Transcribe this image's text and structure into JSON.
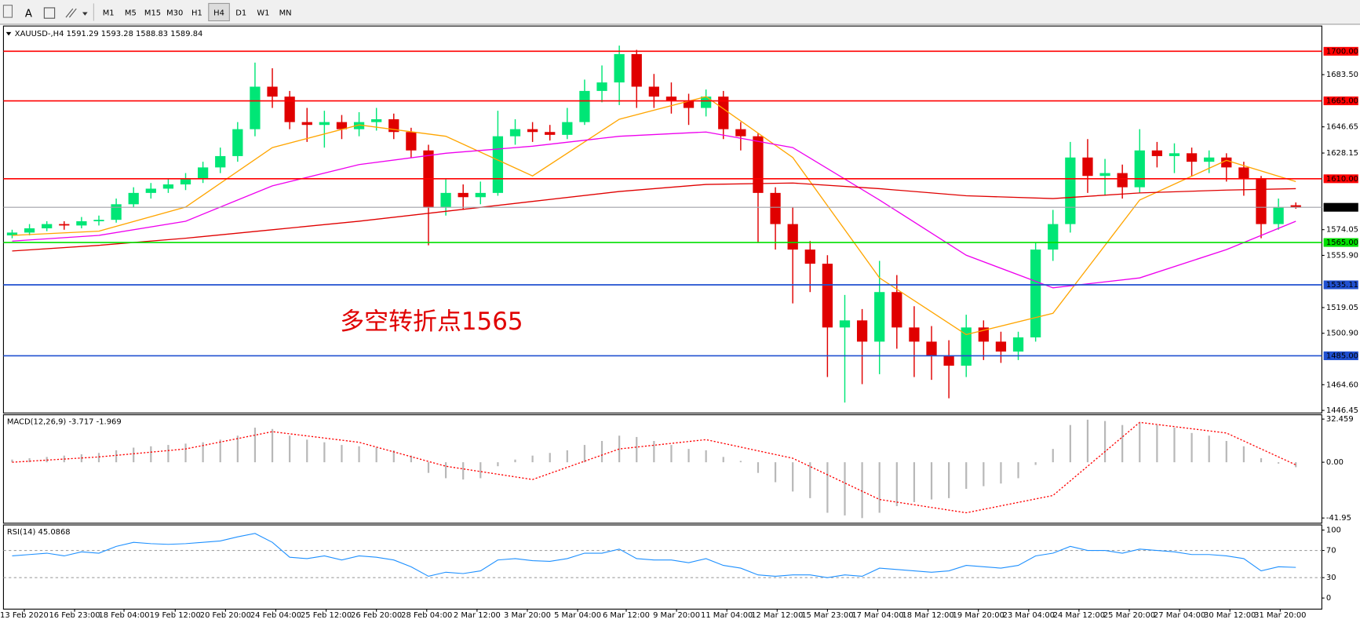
{
  "toolbar": {
    "text_tool": "A",
    "buttons": [
      "M1",
      "M5",
      "M15",
      "M30",
      "H1",
      "H4",
      "D1",
      "W1",
      "MN"
    ],
    "active": "H4"
  },
  "chart_data": [
    {
      "type": "candlestick",
      "title": "XAUUSD-,H4  1591.29 1593.28 1588.83 1589.84",
      "up_color": "#00e676",
      "down_color": "#e00000",
      "ohlc": [
        [
          1570,
          1574,
          1568,
          1572
        ],
        [
          1572,
          1578,
          1570,
          1575
        ],
        [
          1575,
          1580,
          1573,
          1578
        ],
        [
          1578,
          1580,
          1574,
          1577
        ],
        [
          1577,
          1583,
          1575,
          1580
        ],
        [
          1580,
          1584,
          1577,
          1581
        ],
        [
          1581,
          1596,
          1579,
          1592
        ],
        [
          1592,
          1604,
          1590,
          1600
        ],
        [
          1600,
          1607,
          1596,
          1603
        ],
        [
          1603,
          1610,
          1600,
          1606
        ],
        [
          1606,
          1614,
          1602,
          1610
        ],
        [
          1610,
          1622,
          1607,
          1618
        ],
        [
          1618,
          1632,
          1614,
          1626
        ],
        [
          1626,
          1650,
          1622,
          1645
        ],
        [
          1645,
          1692,
          1640,
          1675
        ],
        [
          1675,
          1688,
          1660,
          1668
        ],
        [
          1668,
          1672,
          1645,
          1650
        ],
        [
          1650,
          1660,
          1636,
          1648
        ],
        [
          1648,
          1658,
          1632,
          1650
        ],
        [
          1650,
          1655,
          1638,
          1645
        ],
        [
          1645,
          1657,
          1640,
          1650
        ],
        [
          1650,
          1660,
          1644,
          1652
        ],
        [
          1652,
          1656,
          1638,
          1643
        ],
        [
          1643,
          1646,
          1625,
          1630
        ],
        [
          1630,
          1634,
          1563,
          1590
        ],
        [
          1590,
          1610,
          1584,
          1600
        ],
        [
          1600,
          1606,
          1588,
          1597
        ],
        [
          1597,
          1608,
          1592,
          1600
        ],
        [
          1600,
          1658,
          1598,
          1640
        ],
        [
          1640,
          1652,
          1634,
          1645
        ],
        [
          1645,
          1650,
          1636,
          1643
        ],
        [
          1643,
          1648,
          1637,
          1641
        ],
        [
          1641,
          1660,
          1638,
          1650
        ],
        [
          1650,
          1680,
          1648,
          1672
        ],
        [
          1672,
          1690,
          1664,
          1678
        ],
        [
          1678,
          1704,
          1662,
          1698
        ],
        [
          1698,
          1701,
          1660,
          1675
        ],
        [
          1675,
          1684,
          1660,
          1668
        ],
        [
          1668,
          1678,
          1656,
          1665
        ],
        [
          1665,
          1670,
          1648,
          1660
        ],
        [
          1660,
          1673,
          1654,
          1668
        ],
        [
          1668,
          1672,
          1638,
          1645
        ],
        [
          1645,
          1650,
          1630,
          1640
        ],
        [
          1640,
          1642,
          1565,
          1600
        ],
        [
          1600,
          1604,
          1560,
          1578
        ],
        [
          1578,
          1590,
          1522,
          1560
        ],
        [
          1560,
          1566,
          1530,
          1550
        ],
        [
          1550,
          1556,
          1470,
          1505
        ],
        [
          1505,
          1528,
          1452,
          1510
        ],
        [
          1510,
          1518,
          1465,
          1495
        ],
        [
          1495,
          1552,
          1472,
          1530
        ],
        [
          1530,
          1542,
          1490,
          1505
        ],
        [
          1505,
          1520,
          1470,
          1495
        ],
        [
          1495,
          1506,
          1468,
          1485
        ],
        [
          1485,
          1496,
          1455,
          1478
        ],
        [
          1478,
          1514,
          1470,
          1505
        ],
        [
          1505,
          1510,
          1482,
          1495
        ],
        [
          1495,
          1502,
          1480,
          1488
        ],
        [
          1488,
          1502,
          1482,
          1498
        ],
        [
          1498,
          1565,
          1495,
          1560
        ],
        [
          1560,
          1588,
          1552,
          1578
        ],
        [
          1578,
          1636,
          1572,
          1625
        ],
        [
          1625,
          1638,
          1600,
          1612
        ],
        [
          1612,
          1624,
          1598,
          1614
        ],
        [
          1614,
          1620,
          1596,
          1604
        ],
        [
          1604,
          1645,
          1600,
          1630
        ],
        [
          1630,
          1636,
          1618,
          1626
        ],
        [
          1626,
          1635,
          1614,
          1628
        ],
        [
          1628,
          1632,
          1612,
          1622
        ],
        [
          1622,
          1630,
          1614,
          1625
        ],
        [
          1625,
          1628,
          1608,
          1618
        ],
        [
          1618,
          1622,
          1598,
          1610
        ],
        [
          1610,
          1612,
          1568,
          1578
        ],
        [
          1578,
          1596,
          1574,
          1590
        ],
        [
          1591.29,
          1593.28,
          1588.83,
          1589.84
        ]
      ],
      "lines": [
        {
          "color": "#ffa500",
          "x": [
            0,
            5,
            10,
            15,
            20,
            25,
            30,
            35,
            40,
            45,
            50,
            55,
            60,
            65,
            70,
            74
          ],
          "values": [
            1570,
            1573,
            1590,
            1632,
            1648,
            1640,
            1612,
            1652,
            1668,
            1625,
            1540,
            1500,
            1515,
            1595,
            1623,
            1608
          ]
        },
        {
          "color": "#ee00ee",
          "x": [
            0,
            5,
            10,
            15,
            20,
            25,
            30,
            35,
            40,
            45,
            50,
            55,
            60,
            65,
            70,
            74
          ],
          "values": [
            1566,
            1570,
            1580,
            1605,
            1620,
            1628,
            1633,
            1640,
            1643,
            1632,
            1595,
            1556,
            1533,
            1540,
            1560,
            1580
          ]
        },
        {
          "color": "#e00000",
          "x": [
            0,
            5,
            10,
            15,
            20,
            25,
            30,
            35,
            40,
            45,
            50,
            55,
            60,
            65,
            70,
            74
          ],
          "values": [
            1559,
            1563,
            1568,
            1574,
            1580,
            1587,
            1594,
            1601,
            1606,
            1607,
            1603,
            1598,
            1596,
            1600,
            1602,
            1603
          ]
        }
      ],
      "levels": [
        {
          "value": 1700,
          "label": "1700.00",
          "color": "#ff0000"
        },
        {
          "value": 1665,
          "label": "1665.00",
          "color": "#ff0000"
        },
        {
          "value": 1610,
          "label": "1610.00",
          "color": "#ff0000"
        },
        {
          "value": 1565,
          "label": "1565.00",
          "color": "#00e000"
        },
        {
          "value": 1535.11,
          "label": "1535.11",
          "color": "#2050d0"
        },
        {
          "value": 1485,
          "label": "1485.00",
          "color": "#2050d0"
        }
      ],
      "current_price": {
        "value": 1589.84,
        "label": "1589.84",
        "color": "#a0a0a8"
      },
      "annotation": "多空转折点1565",
      "xlim": [
        -0.5,
        75.5
      ],
      "ylim": [
        1444.6,
        1716.6
      ],
      "yticks": [
        {
          "value": 1683.5,
          "label": "1683.50"
        },
        1646.65,
        1628.15,
        1574.05,
        {
          "value": 1555.9,
          "label": "1555.90"
        },
        1519.05,
        {
          "value": 1500.9,
          "label": "1500.90"
        },
        {
          "value": 1464.6,
          "label": "1464.60"
        },
        1446.45
      ]
    },
    {
      "type": "bar",
      "title": "MACD(12,26,9) -3.717 -1.969",
      "color": "#b8b8b8",
      "values": [
        2,
        3,
        4,
        5,
        6,
        7,
        9,
        11,
        12,
        13,
        14,
        15,
        17,
        20,
        26,
        25,
        20,
        17,
        15,
        13,
        12,
        11,
        9,
        5,
        -8,
        -12,
        -13,
        -12,
        -3,
        2,
        5,
        7,
        9,
        13,
        16,
        20,
        19,
        16,
        13,
        10,
        9,
        4,
        1,
        -8,
        -15,
        -22,
        -27,
        -38,
        -40,
        -42,
        -38,
        -33,
        -30,
        -28,
        -27,
        -20,
        -18,
        -16,
        -12,
        -2,
        10,
        28,
        32,
        31,
        28,
        30,
        28,
        26,
        22,
        20,
        16,
        12,
        3,
        -1,
        -3.717
      ],
      "lines": [
        {
          "color": "#ff0000",
          "dashed": true,
          "x": [
            0,
            5,
            10,
            15,
            20,
            25,
            30,
            35,
            40,
            45,
            50,
            55,
            60,
            65,
            70,
            74
          ],
          "values": [
            0,
            4,
            10,
            23,
            15,
            -3,
            -13,
            10,
            17,
            3,
            -28,
            -38,
            -25,
            30,
            22,
            -1.969
          ]
        }
      ],
      "xlim": [
        -0.5,
        75.5
      ],
      "ylim": [
        -45.21,
        35.07
      ],
      "yticks": [
        32.459,
        {
          "value": 0,
          "label": "0.00"
        },
        -41.95
      ]
    },
    {
      "type": "line",
      "title": "RSI(14) 45.0868",
      "color": "#1e90ff",
      "values": [
        62,
        64,
        66,
        62,
        68,
        66,
        76,
        82,
        80,
        79,
        80,
        82,
        84,
        90,
        95,
        82,
        60,
        58,
        62,
        56,
        62,
        60,
        56,
        46,
        32,
        38,
        36,
        40,
        56,
        58,
        55,
        54,
        58,
        66,
        66,
        72,
        58,
        56,
        56,
        52,
        58,
        48,
        44,
        34,
        32,
        34,
        34,
        30,
        34,
        32,
        44,
        42,
        40,
        38,
        40,
        48,
        46,
        44,
        48,
        62,
        66,
        76,
        70,
        70,
        66,
        72,
        70,
        68,
        64,
        64,
        62,
        58,
        40,
        46,
        45.0868
      ],
      "reference_lines": [
        70,
        30
      ],
      "xlim": [
        -0.5,
        75.5
      ],
      "ylim": [
        -13.75,
        106.25
      ],
      "yticks": [
        100,
        70,
        30,
        0
      ],
      "xticks": [
        {
          "value": 0.7,
          "label": "13 Feb 2020"
        },
        {
          "value": 3.6,
          "label": "16 Feb 23:00"
        },
        {
          "value": 6.45,
          "label": "18 Feb 04:00"
        },
        {
          "value": 9.4,
          "label": "19 Feb 12:00"
        },
        {
          "value": 12.3,
          "label": "20 Feb 20:00"
        },
        {
          "value": 15.2,
          "label": "24 Feb 04:00"
        },
        {
          "value": 18.1,
          "label": "25 Feb 12:00"
        },
        {
          "value": 21,
          "label": "26 Feb 20:00"
        },
        {
          "value": 23.9,
          "label": "28 Feb 04:00"
        },
        {
          "value": 26.8,
          "label": "2 Mar 12:00"
        },
        {
          "value": 29.7,
          "label": "3 Mar 20:00"
        },
        {
          "value": 32.6,
          "label": "5 Mar 04:00"
        },
        {
          "value": 35.4,
          "label": "6 Mar 12:00"
        },
        {
          "value": 38.3,
          "label": "9 Mar 20:00"
        },
        {
          "value": 41.2,
          "label": "11 Mar 04:00"
        },
        {
          "value": 44.1,
          "label": "12 Mar 12:00"
        },
        {
          "value": 47,
          "label": "15 Mar 23:00"
        },
        {
          "value": 49.9,
          "label": "17 Mar 04:00"
        },
        {
          "value": 52.8,
          "label": "18 Mar 12:00"
        },
        {
          "value": 55.7,
          "label": "19 Mar 20:00"
        },
        {
          "value": 58.6,
          "label": "23 Mar 04:00"
        },
        {
          "value": 61.5,
          "label": "24 Mar 12:00"
        },
        {
          "value": 64.4,
          "label": "25 Mar 20:00"
        },
        {
          "value": 67.3,
          "label": "27 Mar 04:00"
        },
        {
          "value": 70.2,
          "label": "30 Mar 12:00"
        },
        {
          "value": 73.1,
          "label": "31 Mar 20:00"
        }
      ]
    }
  ]
}
